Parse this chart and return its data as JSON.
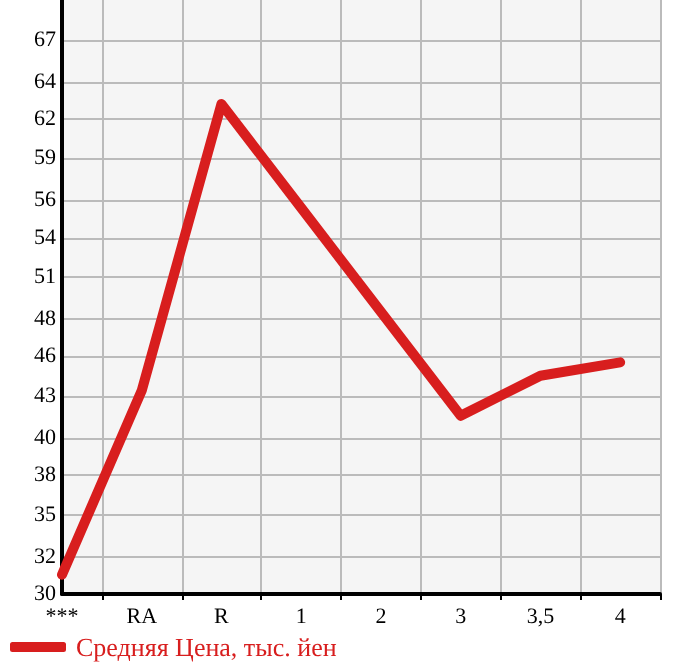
{
  "chart_data": {
    "type": "line",
    "categories": [
      "***",
      "RA",
      "R",
      "1",
      "2",
      "3",
      "3,5",
      "4"
    ],
    "series": [
      {
        "name": "Средняя Цена, тыс. йен",
        "color": "#d81e1e",
        "values": [
          31.3,
          43.7,
          63.0,
          56.0,
          49.0,
          42.0,
          44.7,
          45.6
        ]
      }
    ],
    "ylim": [
      30,
      70
    ],
    "yticks": [
      30,
      {
        "value": 32.5,
        "label": "32"
      },
      {
        "value": 35.33,
        "label": "35"
      },
      38,
      {
        "value": 40.5,
        "label": "40"
      },
      {
        "value": 43.33,
        "label": "43"
      },
      46,
      {
        "value": 48.5,
        "label": "48"
      },
      {
        "value": 51.33,
        "label": "51"
      },
      54,
      {
        "value": 56.5,
        "label": "56"
      },
      {
        "value": 59.33,
        "label": "59"
      },
      62,
      {
        "value": 64.5,
        "label": "64"
      },
      {
        "value": 67.33,
        "label": "67"
      }
    ],
    "grid": true,
    "legend": "bottom left",
    "marker": "none",
    "line_style": "solid"
  }
}
